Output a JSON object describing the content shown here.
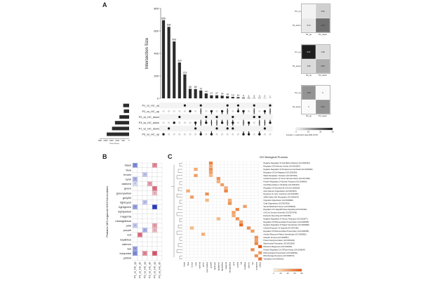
{
  "panels": {
    "a": {
      "letter": "A"
    },
    "b": {
      "letter": "B"
    },
    "c": {
      "letter": "C"
    }
  },
  "colors": {
    "bar": "#2b2b2b",
    "dot_on": "#1a1a1a",
    "dot_off": "#d9d9d9",
    "blue": "#2a3fbf",
    "red": "#c8102e",
    "orange": "#f28c28",
    "gold": "#f5b041"
  },
  "upset": {
    "ylabel": "Intersection Size",
    "set_size_label": "Set Size",
    "yticks": [
      0,
      200,
      400,
      600,
      800
    ],
    "set_size_ticks": [
      "2500",
      "2000",
      "1500",
      "1000",
      "500",
      "0"
    ],
    "sets": [
      {
        "name": "P1_vs_HC_up",
        "size": 500
      },
      {
        "name": "P2_vs_HC_up",
        "size": 450
      },
      {
        "name": "P2_vs_HC_down",
        "size": 820
      },
      {
        "name": "P3_vs_HC_down",
        "size": 1200
      },
      {
        "name": "P1_vs_HC_down",
        "size": 1450
      },
      {
        "name": "P3_vs_HC_up",
        "size": 1900
      }
    ],
    "intersections": [
      {
        "value": 695,
        "sets": [
          5
        ]
      },
      {
        "value": 636,
        "sets": [
          4
        ]
      },
      {
        "value": 506,
        "sets": [
          3
        ]
      },
      {
        "value": 319,
        "sets": [
          2
        ]
      },
      {
        "value": 213,
        "sets": [
          0
        ]
      },
      {
        "value": 85,
        "sets": [
          1
        ]
      },
      {
        "value": 83,
        "sets": [
          3,
          4
        ]
      },
      {
        "value": 70,
        "sets": [
          0,
          5
        ]
      },
      {
        "value": 44,
        "sets": [
          2,
          3
        ]
      },
      {
        "value": 27,
        "sets": [
          1,
          5
        ]
      },
      {
        "value": 27,
        "sets": [
          2,
          4
        ]
      },
      {
        "value": 24,
        "sets": [
          1,
          3
        ]
      },
      {
        "value": 18,
        "sets": [
          0,
          4
        ]
      },
      {
        "value": 13,
        "sets": [
          2,
          3,
          4
        ]
      },
      {
        "value": 10,
        "sets": [
          0,
          1
        ]
      },
      {
        "value": 6,
        "sets": [
          1,
          5
        ]
      },
      {
        "value": 4,
        "sets": [
          3,
          5
        ]
      },
      {
        "value": 3,
        "sets": [
          0,
          2
        ]
      },
      {
        "value": 3,
        "sets": [
          2,
          5
        ]
      },
      {
        "value": 2,
        "sets": [
          1,
          4
        ]
      },
      {
        "value": 1,
        "sets": [
          0,
          3
        ]
      }
    ]
  },
  "overlap_heatmaps": [
    {
      "xlabels": [
        "P1_up",
        "P1_down"
      ],
      "ylabels": [
        "P2_up",
        "P2_down"
      ],
      "cells": [
        [
          "",
          "4.96"
        ],
        [
          "9.13",
          "1.23"
        ]
      ],
      "shade": [
        [
          0.05,
          0.2
        ],
        [
          0.1,
          0.6
        ]
      ]
    },
    {
      "xlabels": [
        "P3_up",
        "P3_down"
      ],
      "ylabels": [
        "P1_up",
        "P1_down"
      ],
      "cells": [
        [
          "0.57",
          "1.98"
        ],
        [
          "4.95",
          "0.86"
        ]
      ],
      "shade": [
        [
          0.95,
          0.15
        ],
        [
          0.15,
          0.35
        ]
      ]
    },
    {
      "xlabels": [
        "P3_up",
        "P3_down"
      ],
      "ylabels": [
        "P2_up",
        "P2_down"
      ],
      "cells": [
        [
          "3.38",
          "0"
        ],
        [
          "0",
          "3.53"
        ]
      ],
      "shade": [
        [
          0.45,
          0.02
        ],
        [
          0.02,
          0.45
        ]
      ]
    }
  ],
  "overlap_legend": {
    "ticks": [
      "0",
      "10",
      "20",
      "30"
    ],
    "caption": "Intensity = -Log10 Adj P value (BH) of HGT"
  },
  "module_heatmap": {
    "ylabel": "Pediatric MIS-organoid WGCNA modules",
    "modules": [
      "black",
      "blue",
      "brown",
      "cyan",
      "darkred",
      "green",
      "greenyellow",
      "grey60",
      "lightcyan",
      "lightgreen",
      "lightyellow",
      "magenta",
      "midnightblue",
      "pink",
      "purple",
      "red",
      "royalblue",
      "salmon",
      "tan",
      "turquoise",
      "yellow"
    ],
    "columns": [
      "P1_vs_HC_up",
      "P1_vs_HC_dn",
      "P2_vs_HC_up",
      "P2_vs_HC_dn",
      "P3_vs_HC_up",
      "P3_vs_HC_dn"
    ],
    "cells": [
      [
        -0.6,
        0,
        0,
        0,
        0.5,
        0
      ],
      [
        0,
        0,
        0,
        0,
        0,
        0
      ],
      [
        0,
        0,
        -0.3,
        0,
        0,
        0
      ],
      [
        -0.4,
        0,
        0,
        0,
        0,
        0
      ],
      [
        -0.2,
        0,
        0,
        0.4,
        0,
        0
      ],
      [
        0,
        0,
        0,
        0,
        0.6,
        0
      ],
      [
        0,
        0,
        0,
        0,
        0.3,
        0
      ],
      [
        0,
        0,
        0,
        0,
        0,
        0
      ],
      [
        0,
        0,
        -0.3,
        0,
        0,
        0
      ],
      [
        -0.5,
        0,
        0,
        0,
        -1.0,
        0
      ],
      [
        0,
        0,
        0,
        0,
        0,
        0
      ],
      [
        0,
        0,
        0,
        0,
        0,
        0
      ],
      [
        0,
        0,
        0,
        0,
        0,
        0
      ],
      [
        -0.3,
        0,
        0,
        0,
        0.4,
        0
      ],
      [
        0,
        0,
        -0.4,
        0,
        0.3,
        0
      ],
      [
        0,
        0.6,
        0,
        0,
        0,
        0
      ],
      [
        0,
        0,
        0,
        0,
        0,
        0
      ],
      [
        0,
        0,
        0,
        0,
        0,
        0
      ],
      [
        -0.5,
        0,
        0,
        0,
        0,
        0
      ],
      [
        -0.6,
        0,
        0.5,
        0,
        0.7,
        0
      ],
      [
        0,
        0,
        0,
        0,
        0,
        0
      ]
    ],
    "legend_ticks": [
      "-20",
      "-10",
      "0",
      "10",
      "20"
    ],
    "legend_caption": "Intensity = -Log10 Adj P value (BH) of HGT; blue color refers to DEG signature"
  },
  "go_heatmap": {
    "title": "GO Biological Process",
    "terms": [
      "Negative Regulation Of Cell-Matrix Adhesion (GO:0001953)",
      "Regulation Of B Memory Activity (GO:0043367)",
      "Negative Regulation Of Programmed Cell Death (GO:0043069)",
      "Regulation Of Cell Migration (GO:0030334)",
      "Mitotic Metaphase Transition (GO:0007091)",
      "Cellular Response To Tumor Necrosis Factor (GO:0071356)",
      "Positive Regulation Of Nuclear Transport (GO:0046824)",
      "Cell Differentiation In Hindbrain (GO:0021533)",
      "Regulation Of Secretion By Cell (GO:1903530)",
      "Actin Filament Organization (GO:0007015)",
      "Response To Type I Interferon (GO:0034340)",
      "mRNA Splice Site Recognition (GO:0006376)",
      "Organelle Organization (GO:0006996)",
      "Golgi Organization (GO:0007030)",
      "Steroid Metabolic Process (GO:0008202)",
      "Regulation Of I-kappaB Kinase Signaling (GO:0043122)",
      "Cell-Cell Junction Assembly (GO:0007043)",
      "Endocytic Recycling (GO:0032456)",
      "Negative Regulation Of Neuron Projection (GO:0010977)",
      "Regulation Of DNA-templated Transcription (GO:0006355)",
      "Negative Regulation Of Signal Transduction (GO:0009968)",
      "Cellular Response To Hypoxia (GO:0071456)",
      "Regulation Of DNA-templated Transcription (GO:0006355)",
      "Antiviral Response Pattern Specification (GO:0009952)",
      "Ubiquitin Process (GO:0016567)",
      "Protein Depolymerization (GO:0051261)",
      "Mitochondrial Translation (GO:0032543)",
      "Ribosome Biogenesis (GO:0042254)",
      "Positive Regulation Of GTPase Activity (GO:0043547)",
      "DNA-templated Transcription (GO:0006351)",
      "DNA Damage Response (GO:0006974)",
      "Translation (GO:0006412)"
    ],
    "modules": [
      "black",
      "blue",
      "brown",
      "cyan",
      "darkred",
      "green",
      "greenyellow",
      "grey60",
      "lightcyan",
      "lightgreen",
      "lightyellow",
      "magenta",
      "midnightblue",
      "pink",
      "purple",
      "red",
      "royalblue",
      "salmon",
      "tan",
      "turquoise",
      "yellow"
    ],
    "hits": [
      [
        0,
        7,
        0.7
      ],
      [
        1,
        7,
        0.4
      ],
      [
        2,
        7,
        0.6
      ],
      [
        3,
        7,
        0.5
      ],
      [
        4,
        7,
        0.3
      ],
      [
        5,
        9,
        0.6
      ],
      [
        6,
        9,
        0.4
      ],
      [
        7,
        10,
        0.5
      ],
      [
        8,
        11,
        0.4
      ],
      [
        9,
        11,
        0.7
      ],
      [
        10,
        6,
        0.6
      ],
      [
        11,
        2,
        0.5
      ],
      [
        12,
        12,
        0.4
      ],
      [
        13,
        12,
        0.6
      ],
      [
        14,
        16,
        0.5
      ],
      [
        15,
        14,
        0.7
      ],
      [
        16,
        13,
        0.5
      ],
      [
        17,
        13,
        0.4
      ],
      [
        18,
        14,
        0.6
      ],
      [
        19,
        15,
        0.5
      ],
      [
        20,
        15,
        0.9
      ],
      [
        21,
        17,
        0.6
      ],
      [
        22,
        18,
        0.5
      ],
      [
        23,
        5,
        0.4
      ],
      [
        24,
        19,
        0.6
      ],
      [
        25,
        19,
        0.5
      ],
      [
        26,
        19,
        0.7
      ],
      [
        27,
        20,
        1.0
      ],
      [
        28,
        18,
        0.6
      ],
      [
        29,
        20,
        0.5
      ],
      [
        30,
        19,
        0.6
      ],
      [
        31,
        20,
        0.8
      ],
      [
        2,
        3,
        0.4
      ],
      [
        4,
        3,
        0.5
      ],
      [
        9,
        1,
        0.4
      ],
      [
        12,
        6,
        0.3
      ],
      [
        18,
        9,
        0.3
      ],
      [
        21,
        2,
        0.3
      ]
    ],
    "legend_ticks": [
      "0",
      "20",
      "40",
      "60",
      "80"
    ]
  }
}
